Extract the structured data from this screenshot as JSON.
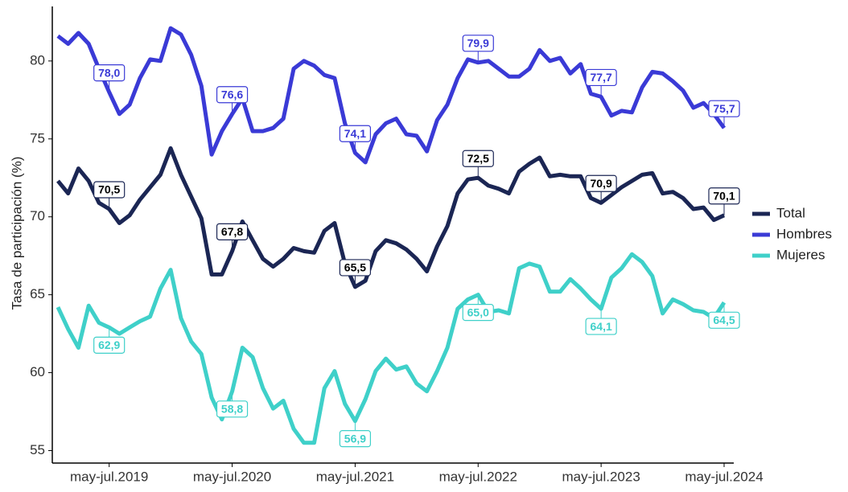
{
  "chart_data": {
    "type": "line",
    "y_label": "Tasa de participación (%)",
    "categories": [
      null,
      null,
      null,
      null,
      null,
      "may-jul.2019",
      null,
      null,
      null,
      null,
      null,
      null,
      null,
      null,
      null,
      null,
      null,
      "may-jul.2020",
      null,
      null,
      null,
      null,
      null,
      null,
      null,
      null,
      null,
      null,
      null,
      "may-jul.2021",
      null,
      null,
      null,
      null,
      null,
      null,
      null,
      null,
      null,
      null,
      null,
      "may-jul.2022",
      null,
      null,
      null,
      null,
      null,
      null,
      null,
      null,
      null,
      null,
      null,
      "may-jul.2023",
      null,
      null,
      null,
      null,
      null,
      null,
      null,
      null,
      null,
      null,
      null,
      "may-jul.2024"
    ],
    "series": [
      {
        "name": "Total",
        "color": "#1b2654",
        "values": [
          72.3,
          71.5,
          73.1,
          72.3,
          70.9,
          70.5,
          69.6,
          70.1,
          71.1,
          71.9,
          72.7,
          74.4,
          72.7,
          71.3,
          69.9,
          66.3,
          66.3,
          67.8,
          69.7,
          68.5,
          67.3,
          66.8,
          67.3,
          68.0,
          67.8,
          67.7,
          69.1,
          69.6,
          67.0,
          65.5,
          65.9,
          67.8,
          68.5,
          68.3,
          67.9,
          67.3,
          66.5,
          68.1,
          69.4,
          71.5,
          72.4,
          72.5,
          72.0,
          71.8,
          71.5,
          72.9,
          73.4,
          73.8,
          72.6,
          72.7,
          72.6,
          72.6,
          71.2,
          70.9,
          71.4,
          71.9,
          72.3,
          72.7,
          72.8,
          71.5,
          71.6,
          71.2,
          70.5,
          70.6,
          69.8,
          70.1
        ],
        "value_labels": [
          null,
          null,
          null,
          null,
          null,
          "70,5",
          null,
          null,
          null,
          null,
          null,
          null,
          null,
          null,
          null,
          null,
          null,
          "67,8",
          null,
          null,
          null,
          null,
          null,
          null,
          null,
          null,
          null,
          null,
          null,
          "65,5",
          null,
          null,
          null,
          null,
          null,
          null,
          null,
          null,
          null,
          null,
          null,
          "72,5",
          null,
          null,
          null,
          null,
          null,
          null,
          null,
          null,
          null,
          null,
          null,
          "70,9",
          null,
          null,
          null,
          null,
          null,
          null,
          null,
          null,
          null,
          null,
          null,
          "70,1"
        ]
      },
      {
        "name": "Hombres",
        "color": "#3a3ad6",
        "values": [
          81.6,
          81.1,
          81.8,
          81.1,
          79.5,
          78.0,
          76.6,
          77.2,
          78.9,
          80.1,
          80.0,
          82.1,
          81.7,
          80.4,
          78.4,
          74.0,
          75.5,
          76.6,
          77.6,
          75.5,
          75.5,
          75.7,
          76.3,
          79.5,
          80.0,
          79.7,
          79.1,
          78.9,
          76.0,
          74.1,
          73.5,
          75.3,
          76.0,
          76.3,
          75.3,
          75.2,
          74.2,
          76.2,
          77.2,
          78.9,
          80.1,
          79.9,
          80.0,
          79.5,
          79.0,
          79.0,
          79.5,
          80.7,
          80.0,
          80.2,
          79.2,
          79.8,
          77.9,
          77.7,
          76.5,
          76.8,
          76.7,
          78.3,
          79.3,
          79.2,
          78.7,
          78.1,
          77.0,
          77.3,
          76.6,
          75.7
        ],
        "value_labels": [
          null,
          null,
          null,
          null,
          null,
          "78,0",
          null,
          null,
          null,
          null,
          null,
          null,
          null,
          null,
          null,
          null,
          null,
          "76,6",
          null,
          null,
          null,
          null,
          null,
          null,
          null,
          null,
          null,
          null,
          null,
          "74,1",
          null,
          null,
          null,
          null,
          null,
          null,
          null,
          null,
          null,
          null,
          null,
          "79,9",
          null,
          null,
          null,
          null,
          null,
          null,
          null,
          null,
          null,
          null,
          null,
          "77,7",
          null,
          null,
          null,
          null,
          null,
          null,
          null,
          null,
          null,
          null,
          null,
          "75,7"
        ]
      },
      {
        "name": "Mujeres",
        "color": "#3fd0c9",
        "values": [
          64.2,
          62.8,
          61.6,
          64.3,
          63.2,
          62.9,
          62.5,
          62.9,
          63.3,
          63.6,
          65.4,
          66.6,
          63.5,
          62.0,
          61.2,
          58.4,
          57.0,
          58.8,
          61.6,
          61.0,
          59.0,
          57.7,
          58.2,
          56.4,
          55.5,
          55.5,
          59.0,
          60.1,
          58.0,
          56.9,
          58.3,
          60.1,
          60.9,
          60.2,
          60.4,
          59.3,
          58.8,
          60.1,
          61.6,
          64.1,
          64.7,
          65.0,
          63.9,
          64.0,
          63.8,
          66.7,
          67.0,
          66.8,
          65.2,
          65.2,
          66.0,
          65.4,
          64.7,
          64.1,
          66.1,
          66.7,
          67.6,
          67.1,
          66.2,
          63.8,
          64.7,
          64.4,
          64.0,
          63.9,
          63.5,
          64.5
        ],
        "value_labels": [
          null,
          null,
          null,
          null,
          null,
          "62,9",
          null,
          null,
          null,
          null,
          null,
          null,
          null,
          null,
          null,
          null,
          null,
          "58,8",
          null,
          null,
          null,
          null,
          null,
          null,
          null,
          null,
          null,
          null,
          null,
          "56,9",
          null,
          null,
          null,
          null,
          null,
          null,
          null,
          null,
          null,
          null,
          null,
          "65,0",
          null,
          null,
          null,
          null,
          null,
          null,
          null,
          null,
          null,
          null,
          null,
          "64,1",
          null,
          null,
          null,
          null,
          null,
          null,
          null,
          null,
          null,
          null,
          null,
          "64,5"
        ]
      }
    ],
    "ylim": [
      54.2,
      83.5
    ],
    "yticks": [
      55,
      60,
      65,
      70,
      75,
      80
    ],
    "legend": "right"
  }
}
